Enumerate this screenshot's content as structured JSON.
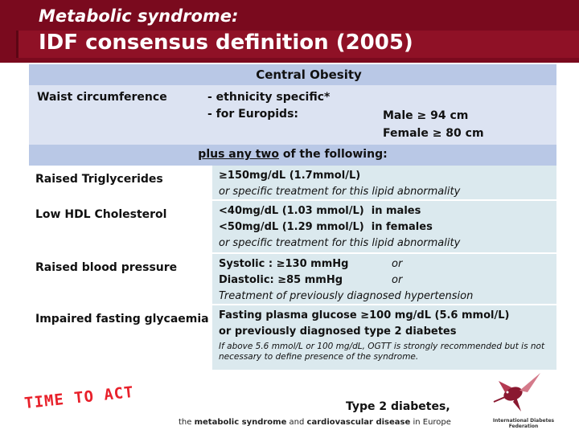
{
  "header": {
    "subtitle": "Metabolic syndrome:",
    "title": "IDF consensus definition (2005)"
  },
  "central_obesity": {
    "heading": "Central Obesity",
    "waist_label": "Waist circumference",
    "ethnicity": "- ethnicity specific*",
    "europids": "- for Europids:",
    "male": "Male ≥ 94 cm",
    "female": "Female ≥ 80 cm"
  },
  "plus": {
    "underlined": "plus any two",
    "rest": " of the following:"
  },
  "criteria": [
    {
      "label": "Raised Triglycerides",
      "line1": "≥150mg/dL (1.7mmol/L)",
      "line2": "or specific treatment for this lipid abnormality"
    },
    {
      "label": "Low HDL Cholesterol",
      "line1a": "<40mg/dL (1.03 mmol/L)",
      "line1b": "in males",
      "line2a": "<50mg/dL (1.29 mmol/L)",
      "line2b": "in females",
      "line3": "or specific treatment for this lipid abnormality"
    },
    {
      "label": "Raised blood pressure",
      "line1a": "Systolic : ≥130 mmHg",
      "line1b": "or",
      "line2a": "Diastolic: ≥85 mmHg",
      "line2b": "or",
      "line3": "Treatment of previously diagnosed hypertension"
    },
    {
      "label": "Impaired fasting glycaemia",
      "line1": "Fasting plasma glucose ≥100 mg/dL (5.6 mmol/L)",
      "line2": "or previously diagnosed type 2 diabetes",
      "note": "If above 5.6 mmol/L or 100 mg/dL, OGTT is strongly recommended but is not necessary to define presence of the syndrome."
    }
  ],
  "footer": {
    "time_to_act": "TIME TO ACT",
    "type2": "Type 2 diabetes,",
    "tag_the": "the ",
    "tag_ms": "metabolic syndrome",
    "tag_and": " and ",
    "tag_cvd": "cardiovascular disease",
    "tag_end": " in Europe",
    "logo_text": "International Diabetes Federation",
    "logo_icon": "hummingbird-icon"
  }
}
